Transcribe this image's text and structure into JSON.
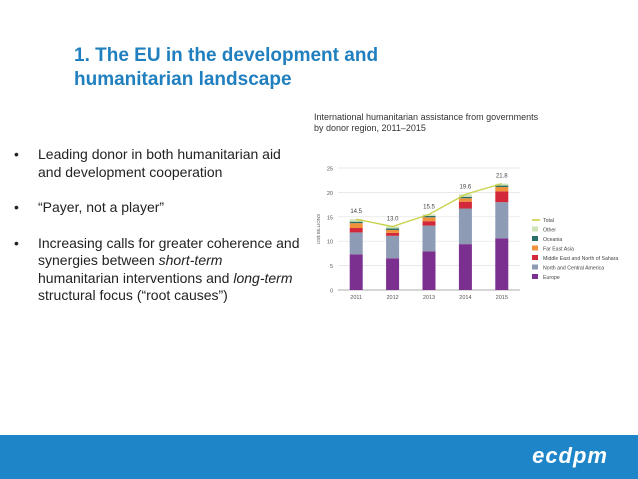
{
  "slide": {
    "title_line1": "1. The EU in the development and",
    "title_line2": "humanitarian landscape",
    "bullets": [
      {
        "parts": [
          {
            "text": "Leading donor in both humanitarian aid and development cooperation",
            "italic": false
          }
        ]
      },
      {
        "parts": [
          {
            "text": "“Payer, not a player”",
            "italic": false
          }
        ]
      },
      {
        "parts": [
          {
            "text": "Increasing calls for greater coherence and synergies between ",
            "italic": false
          },
          {
            "text": "short-term",
            "italic": true
          },
          {
            "text": " humanitarian interventions and ",
            "italic": false
          },
          {
            "text": "long-term",
            "italic": true
          },
          {
            "text": " structural focus (“root causes”)",
            "italic": false
          }
        ]
      }
    ],
    "bullet_symbol": "•"
  },
  "footer": {
    "logo_text": "ecdpm",
    "color": "#1e86c8"
  },
  "chart_data": {
    "type": "bar",
    "stacked": true,
    "title_line1": "International humanitarian assistance from governments",
    "title_line2": "by donor region, 2011–2015",
    "ylabel": "US$ BILLIONS",
    "ylim": [
      0,
      25
    ],
    "yticks": [
      0,
      5,
      10,
      15,
      20,
      25
    ],
    "categories": [
      "2011",
      "2012",
      "2013",
      "2014",
      "2015"
    ],
    "series": [
      {
        "name": "Europe",
        "color": "#7b2f8e",
        "values": [
          7.3,
          6.5,
          7.9,
          9.4,
          10.6
        ]
      },
      {
        "name": "North and Central America",
        "color": "#8e9bb5",
        "values": [
          4.5,
          4.6,
          5.3,
          7.3,
          7.4
        ]
      },
      {
        "name": "Middle East and North of Sahara",
        "color": "#d3283a",
        "values": [
          0.9,
          0.6,
          0.9,
          1.4,
          2.2
        ]
      },
      {
        "name": "Far East Asia",
        "color": "#f0923c",
        "values": [
          1.0,
          0.6,
          0.8,
          0.7,
          0.9
        ]
      },
      {
        "name": "Oceania",
        "color": "#2a6f6a",
        "values": [
          0.3,
          0.3,
          0.3,
          0.3,
          0.3
        ]
      },
      {
        "name": "Other",
        "color": "#cfe3b6",
        "values": [
          0.5,
          0.4,
          0.3,
          0.5,
          0.4
        ]
      }
    ],
    "total": {
      "name": "Total",
      "color": "#c9d24a",
      "values": [
        14.5,
        13.0,
        15.5,
        19.6,
        21.8
      ],
      "labels": [
        "14.5",
        "13.0",
        "15.5",
        "19.6",
        "21.8"
      ]
    },
    "legend_order": [
      "Total",
      "Other",
      "Oceania",
      "Far East Asia",
      "Middle East and North of Sahara",
      "North and Central America",
      "Europe"
    ],
    "legend_position": "right",
    "grid": true
  }
}
